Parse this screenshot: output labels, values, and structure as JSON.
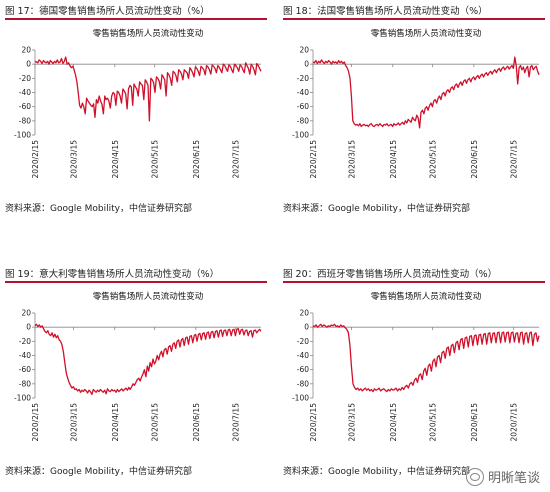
{
  "panels": [
    {
      "fig_title": "图 17：德国零售销售场所人员流动性变动（%）",
      "source": "资料来源：Google Mobility，中信证券研究部",
      "chart_data": {
        "type": "line",
        "title": "零售销售场所人员流动性变动",
        "xlabel": "",
        "ylabel": "",
        "ylim": [
          -100,
          20
        ],
        "yticks": [
          20,
          0,
          -20,
          -40,
          -60,
          -80,
          -100
        ],
        "xticks": [
          "2020/2/15",
          "2020/3/15",
          "2020/4/15",
          "2020/5/15",
          "2020/6/15",
          "2020/7/15"
        ],
        "x_range": [
          "2020/2/15",
          "2020/8/3"
        ],
        "color": "#d0102a",
        "series": [
          {
            "values": [
              4,
              3,
              2,
              6,
              4,
              1,
              5,
              3,
              2,
              4,
              0,
              5,
              3,
              1,
              4,
              2,
              6,
              2,
              3,
              8,
              1,
              4,
              10,
              0,
              2,
              -2,
              -5,
              -3,
              -8,
              -15,
              -25,
              -40,
              -58,
              -62,
              -55,
              -60,
              -70,
              -48,
              -52,
              -55,
              -58,
              -60,
              -56,
              -75,
              -50,
              -55,
              -45,
              -52,
              -57,
              -70,
              -45,
              -50,
              -48,
              -52,
              -62,
              -45,
              -40,
              -42,
              -58,
              -38,
              -40,
              -45,
              -55,
              -35,
              -38,
              -42,
              -63,
              -35,
              -30,
              -32,
              -58,
              -28,
              -32,
              -35,
              -45,
              -25,
              -28,
              -30,
              -50,
              -22,
              -25,
              -30,
              -80,
              -20,
              -22,
              -26,
              -40,
              -18,
              -20,
              -24,
              -35,
              -15,
              -18,
              -22,
              -45,
              -12,
              -15,
              -20,
              -30,
              -10,
              -12,
              -16,
              -25,
              -8,
              -10,
              -14,
              -22,
              -8,
              -10,
              -12,
              -20,
              -5,
              -8,
              -12,
              -18,
              -4,
              -6,
              -10,
              -16,
              -3,
              -5,
              -8,
              -15,
              -2,
              -4,
              -8,
              -14,
              -1,
              -3,
              -6,
              -12,
              -2,
              -4,
              -8,
              -12,
              0,
              -2,
              -6,
              -10,
              -1,
              -3,
              -8,
              -12,
              0,
              -2,
              -5,
              -10,
              -1,
              -3,
              -8,
              -12,
              2,
              -2,
              -6,
              -14,
              0,
              -3,
              -8,
              -15,
              1,
              -2,
              -6,
              -10
            ]
          }
        ]
      }
    },
    {
      "fig_title": "图 18：法国零售销售场所人员流动性变动（%）",
      "source": "资料来源：Google Mobility，中信证券研究部",
      "chart_data": {
        "type": "line",
        "title": "零售销售场所人员流动性变动",
        "xlabel": "",
        "ylabel": "",
        "ylim": [
          -100,
          20
        ],
        "yticks": [
          20,
          0,
          -20,
          -40,
          -60,
          -80,
          -100
        ],
        "xticks": [
          "2020/2/15",
          "2020/3/15",
          "2020/4/15",
          "2020/5/15",
          "2020/6/15",
          "2020/7/15"
        ],
        "x_range": [
          "2020/2/15",
          "2020/8/3"
        ],
        "color": "#d0102a",
        "series": [
          {
            "values": [
              3,
              2,
              5,
              1,
              4,
              2,
              6,
              3,
              1,
              4,
              2,
              5,
              3,
              0,
              4,
              2,
              3,
              1,
              5,
              2,
              4,
              1,
              3,
              -2,
              -5,
              -10,
              -20,
              -45,
              -80,
              -84,
              -86,
              -85,
              -87,
              -84,
              -88,
              -86,
              -85,
              -87,
              -86,
              -88,
              -85,
              -84,
              -87,
              -88,
              -86,
              -85,
              -87,
              -84,
              -86,
              -88,
              -85,
              -86,
              -84,
              -87,
              -86,
              -85,
              -88,
              -84,
              -86,
              -85,
              -83,
              -86,
              -84,
              -82,
              -85,
              -80,
              -83,
              -78,
              -80,
              -82,
              -75,
              -78,
              -80,
              -72,
              -76,
              -90,
              -68,
              -65,
              -70,
              -62,
              -60,
              -65,
              -58,
              -55,
              -60,
              -52,
              -50,
              -55,
              -48,
              -45,
              -50,
              -42,
              -40,
              -45,
              -38,
              -36,
              -40,
              -34,
              -32,
              -36,
              -30,
              -28,
              -33,
              -28,
              -25,
              -30,
              -24,
              -22,
              -27,
              -22,
              -20,
              -25,
              -20,
              -18,
              -22,
              -18,
              -16,
              -20,
              -16,
              -14,
              -18,
              -14,
              -12,
              -16,
              -12,
              -10,
              -14,
              -10,
              -8,
              -12,
              -8,
              -6,
              -10,
              -6,
              -4,
              -8,
              -5,
              -3,
              -7,
              -4,
              -2,
              -6,
              10,
              -3,
              -28,
              -5,
              -2,
              -8,
              -4,
              -12,
              -6,
              -3,
              -18,
              -4,
              -2,
              -8,
              -5,
              -3,
              -10,
              -15
            ]
          }
        ]
      }
    },
    {
      "fig_title": "图 19：意大利零售销售场所人员流动性变动（%）",
      "source": "资料来源：Google Mobility，中信证券研究部",
      "chart_data": {
        "type": "line",
        "title": "零售销售场所人员流动性变动",
        "xlabel": "",
        "ylabel": "",
        "ylim": [
          -100,
          20
        ],
        "yticks": [
          20,
          0,
          -20,
          -40,
          -60,
          -80,
          -100
        ],
        "xticks": [
          "2020/2/15",
          "2020/3/15",
          "2020/4/15",
          "2020/5/15",
          "2020/6/15",
          "2020/7/15"
        ],
        "x_range": [
          "2020/2/15",
          "2020/8/3"
        ],
        "color": "#d0102a",
        "series": [
          {
            "values": [
              2,
              4,
              1,
              3,
              0,
              2,
              -2,
              -6,
              -8,
              -5,
              -10,
              -12,
              -8,
              -14,
              -10,
              -15,
              -12,
              -18,
              -20,
              -25,
              -35,
              -50,
              -65,
              -72,
              -78,
              -82,
              -86,
              -84,
              -88,
              -87,
              -90,
              -88,
              -92,
              -89,
              -91,
              -88,
              -90,
              -93,
              -89,
              -91,
              -95,
              -88,
              -90,
              -92,
              -89,
              -91,
              -88,
              -90,
              -92,
              -89,
              -94,
              -87,
              -90,
              -91,
              -88,
              -90,
              -89,
              -92,
              -88,
              -91,
              -89,
              -87,
              -90,
              -88,
              -86,
              -89,
              -85,
              -88,
              -84,
              -80,
              -82,
              -78,
              -74,
              -72,
              -76,
              -70,
              -66,
              -60,
              -70,
              -55,
              -62,
              -50,
              -56,
              -45,
              -52,
              -48,
              -40,
              -46,
              -38,
              -34,
              -42,
              -32,
              -30,
              -38,
              -28,
              -26,
              -34,
              -24,
              -22,
              -30,
              -20,
              -18,
              -28,
              -18,
              -16,
              -26,
              -15,
              -14,
              -24,
              -13,
              -12,
              -22,
              -12,
              -10,
              -20,
              -10,
              -9,
              -18,
              -9,
              -8,
              -17,
              -8,
              -7,
              -16,
              -7,
              -6,
              -15,
              -6,
              -5,
              -14,
              -5,
              -4,
              -13,
              -5,
              -4,
              -12,
              -4,
              -3,
              -12,
              -4,
              -3,
              -12,
              -3,
              -2,
              -10,
              -4,
              -3,
              -11,
              -5,
              -4,
              -12,
              -6,
              -5,
              -14,
              -5,
              -4,
              -8,
              -5,
              -3,
              -6
            ]
          }
        ]
      }
    },
    {
      "fig_title": "图 20：西班牙零售销售场所人员流动性变动（%）",
      "source": "资料来源：Google Mobility，中信证券研究部",
      "chart_data": {
        "type": "line",
        "title": "零售销售场所人员流动性变动",
        "xlabel": "",
        "ylabel": "",
        "ylim": [
          -100,
          20
        ],
        "yticks": [
          20,
          0,
          -20,
          -40,
          -60,
          -80,
          -100
        ],
        "xticks": [
          "2020/2/15",
          "2020/3/15",
          "2020/4/15",
          "2020/5/15",
          "2020/6/15",
          "2020/7/15"
        ],
        "x_range": [
          "2020/2/15",
          "2020/8/3"
        ],
        "color": "#d0102a",
        "series": [
          {
            "values": [
              2,
              1,
              3,
              0,
              2,
              4,
              1,
              3,
              2,
              0,
              2,
              1,
              3,
              2,
              4,
              1,
              2,
              0,
              3,
              1,
              2,
              -1,
              -3,
              -8,
              -25,
              -55,
              -80,
              -85,
              -88,
              -86,
              -89,
              -87,
              -90,
              -88,
              -86,
              -89,
              -87,
              -90,
              -88,
              -91,
              -87,
              -89,
              -88,
              -86,
              -90,
              -88,
              -87,
              -89,
              -91,
              -88,
              -90,
              -87,
              -89,
              -88,
              -86,
              -90,
              -87,
              -89,
              -85,
              -88,
              -84,
              -82,
              -86,
              -80,
              -78,
              -82,
              -75,
              -72,
              -78,
              -68,
              -66,
              -74,
              -62,
              -58,
              -68,
              -55,
              -52,
              -62,
              -48,
              -45,
              -56,
              -42,
              -40,
              -50,
              -36,
              -34,
              -44,
              -30,
              -28,
              -40,
              -26,
              -24,
              -36,
              -22,
              -20,
              -32,
              -18,
              -16,
              -30,
              -15,
              -14,
              -28,
              -13,
              -12,
              -26,
              -12,
              -11,
              -25,
              -11,
              -10,
              -24,
              -10,
              -9,
              -24,
              -9,
              -8,
              -22,
              -9,
              -8,
              -22,
              -8,
              -7,
              -22,
              -8,
              -7,
              -21,
              -8,
              -7,
              -22,
              -8,
              -7,
              -21,
              -9,
              -8,
              -22,
              -8,
              -7,
              -24,
              -9,
              -8,
              -22,
              -8,
              -7,
              -26,
              -10,
              -8,
              -20,
              -12
            ]
          }
        ]
      }
    }
  ],
  "watermark": {
    "text": "明晰笔谈"
  }
}
